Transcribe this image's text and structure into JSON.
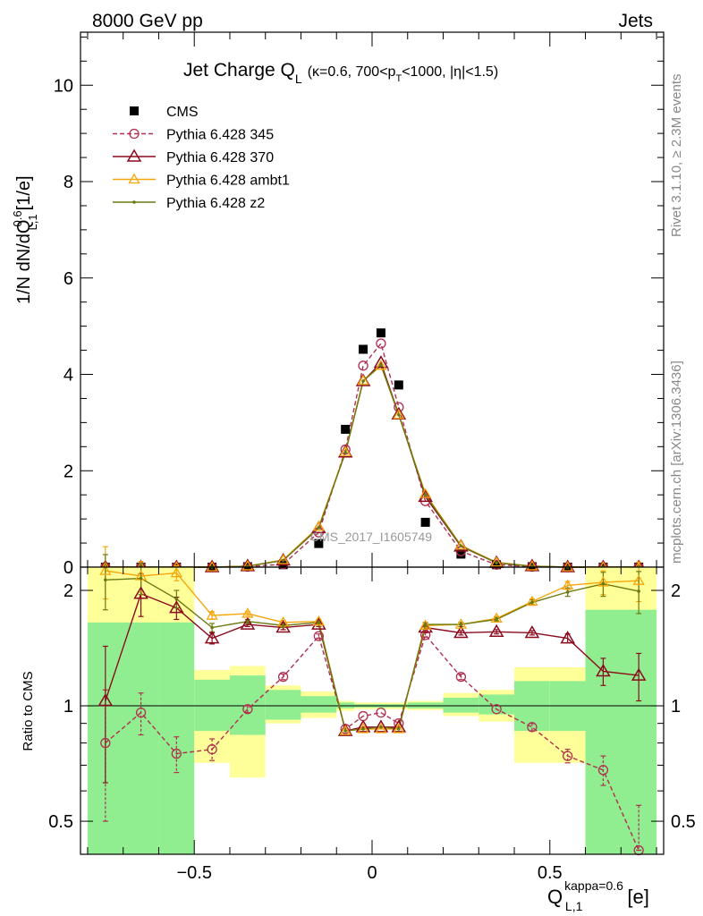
{
  "header": {
    "left": "8000 GeV pp",
    "right": "Jets"
  },
  "side_labels": {
    "rivet": "Rivet 3.1.10, ≥ 2.3M events",
    "mcplots": "mcplots.cern.ch [arXiv:1306.3436]"
  },
  "watermark": "CMS_2017_I1605749",
  "colors": {
    "cms": "#000000",
    "p345": "#b03050",
    "p370": "#8b0a1e",
    "ambt1": "#f5a50a",
    "z2": "#6b7a10",
    "band_green": "#90ee90",
    "band_yellow": "#ffff99"
  },
  "chart_data": [
    {
      "type": "line",
      "title": "Jet Charge Q",
      "title_sub": "L",
      "title_extra": "(κ=0.6, 700<p",
      "title_extra_sub": "T",
      "title_extra_end": "<1000, |η|<1.5)",
      "ylabel": "1/N dN/dQ",
      "ylabel_sup": "0.6",
      "ylabel_sub": "L,1",
      "ylabel_unit": "[1/e]",
      "xlim": [
        -0.82,
        0.82
      ],
      "ylim": [
        0,
        11.1
      ],
      "yticks": [
        0,
        2,
        4,
        6,
        8,
        10
      ],
      "ytick_labels": [
        "0",
        "2",
        "4",
        "6",
        "8",
        "10"
      ],
      "x": [
        -0.75,
        -0.65,
        -0.55,
        -0.45,
        -0.35,
        -0.25,
        -0.15,
        -0.075,
        -0.025,
        0.025,
        0.075,
        0.15,
        0.25,
        0.35,
        0.45,
        0.55,
        0.65,
        0.75
      ],
      "series": [
        {
          "name": "CMS",
          "key": "cms",
          "values": [
            0.0,
            0.0,
            0.0,
            0.0,
            0.01,
            0.05,
            0.49,
            2.86,
            4.52,
            4.86,
            3.78,
            0.93,
            0.27,
            0.05,
            0.01,
            0.0,
            0.0,
            0.0
          ]
        },
        {
          "name": "Pythia 6.428 345",
          "key": "p345",
          "values": [
            0.0,
            0.0,
            0.0,
            0.0,
            0.01,
            0.06,
            0.72,
            2.44,
            4.18,
            4.64,
            3.32,
            1.37,
            0.33,
            0.05,
            0.01,
            0.0,
            0.0,
            0.0
          ]
        },
        {
          "name": "Pythia 6.428 370",
          "key": "p370",
          "values": [
            0.0,
            0.0,
            0.0,
            0.0,
            0.02,
            0.14,
            0.81,
            2.38,
            3.86,
            4.24,
            3.17,
            1.46,
            0.43,
            0.09,
            0.02,
            0.0,
            0.0,
            0.0
          ]
        },
        {
          "name": "Pythia 6.428 ambt1",
          "key": "ambt1",
          "values": [
            0.0,
            0.0,
            0.0,
            0.0,
            0.02,
            0.15,
            0.84,
            2.39,
            3.87,
            4.18,
            3.16,
            1.52,
            0.45,
            0.1,
            0.02,
            0.0,
            0.0,
            0.0
          ]
        },
        {
          "name": "Pythia 6.428 z2",
          "key": "z2",
          "values": [
            0.0,
            0.0,
            0.0,
            0.0,
            0.02,
            0.14,
            0.82,
            2.38,
            3.86,
            4.19,
            3.16,
            1.5,
            0.44,
            0.09,
            0.02,
            0.0,
            0.0,
            0.0
          ]
        }
      ]
    },
    {
      "type": "line",
      "ylabel": "Ratio to CMS",
      "xlabel": "Q",
      "xlabel_sup": "kappa=0.6",
      "xlabel_sub": "L,1",
      "xlabel_unit": "[e]",
      "log_y": true,
      "xlim": [
        -0.82,
        0.82
      ],
      "ylim": [
        0.41,
        2.3
      ],
      "xticks": [
        -0.5,
        0,
        0.5
      ],
      "xtick_labels": [
        "−0.5",
        "0",
        "0.5"
      ],
      "yticks": [
        0.5,
        1,
        2
      ],
      "ytick_labels": [
        "0.5",
        "1",
        "2"
      ],
      "bands": {
        "x_edges": [
          -0.8,
          -0.6,
          -0.5,
          -0.4,
          -0.3,
          -0.2,
          -0.1,
          -0.05,
          0.0,
          0.05,
          0.1,
          0.2,
          0.3,
          0.4,
          0.5,
          0.6,
          0.8
        ],
        "green_lo": [
          0.4,
          0.4,
          0.86,
          0.84,
          0.92,
          0.96,
          0.985,
          0.99,
          0.99,
          0.99,
          0.985,
          0.96,
          0.95,
          0.86,
          0.86,
          0.4
        ],
        "green_hi": [
          1.65,
          1.65,
          1.17,
          1.2,
          1.1,
          1.06,
          1.02,
          1.01,
          1.01,
          1.01,
          1.02,
          1.05,
          1.07,
          1.16,
          1.16,
          1.78
        ],
        "yellow_lo": [
          0.4,
          0.4,
          0.71,
          0.65,
          0.9,
          0.93,
          0.97,
          0.98,
          0.98,
          0.98,
          0.975,
          0.94,
          0.91,
          0.71,
          0.71,
          0.4
        ],
        "yellow_hi": [
          2.3,
          2.3,
          1.24,
          1.27,
          1.13,
          1.09,
          1.03,
          1.02,
          1.02,
          1.02,
          1.03,
          1.08,
          1.1,
          1.26,
          1.26,
          2.3
        ]
      },
      "series": [
        {
          "name": "Pythia 6.428 345",
          "key": "p345",
          "values": [
            0.8,
            0.96,
            0.75,
            0.77,
            0.98,
            1.19,
            1.52,
            0.87,
            0.94,
            0.96,
            0.9,
            1.53,
            1.19,
            0.98,
            0.88,
            0.74,
            0.68,
            0.42
          ],
          "err": [
            0.3,
            0.12,
            0.08,
            0.05,
            0.02,
            0.02,
            0.02,
            0.01,
            0.01,
            0.01,
            0.01,
            0.02,
            0.02,
            0.01,
            0.02,
            0.03,
            0.06,
            0.13
          ]
        },
        {
          "name": "Pythia 6.428 370",
          "key": "p370",
          "values": [
            1.03,
            1.96,
            1.8,
            1.5,
            1.63,
            1.6,
            1.63,
            0.86,
            0.88,
            0.88,
            0.88,
            1.6,
            1.55,
            1.56,
            1.55,
            1.5,
            1.23,
            1.2
          ],
          "err": [
            0.4,
            0.25,
            0.12,
            0.05,
            0.02,
            0.02,
            0.02,
            0.01,
            0.01,
            0.01,
            0.01,
            0.02,
            0.02,
            0.02,
            0.02,
            0.04,
            0.1,
            0.17
          ]
        },
        {
          "name": "Pythia 6.428 ambt1",
          "key": "ambt1",
          "values": [
            2.25,
            2.18,
            2.22,
            1.72,
            1.74,
            1.65,
            1.66,
            0.86,
            0.87,
            0.87,
            0.87,
            1.62,
            1.63,
            1.69,
            1.87,
            2.06,
            2.1,
            2.12
          ],
          "err": [
            0.35,
            0.2,
            0.1,
            0.04,
            0.02,
            0.02,
            0.02,
            0.01,
            0.01,
            0.01,
            0.01,
            0.02,
            0.02,
            0.02,
            0.03,
            0.05,
            0.15,
            0.25
          ]
        },
        {
          "name": "Pythia 6.428 z2",
          "key": "z2",
          "values": [
            2.13,
            2.15,
            1.9,
            1.6,
            1.66,
            1.62,
            1.65,
            0.86,
            0.87,
            0.88,
            0.87,
            1.63,
            1.63,
            1.68,
            1.86,
            1.98,
            2.08,
            1.99
          ],
          "err": [
            0.35,
            0.2,
            0.1,
            0.04,
            0.02,
            0.02,
            0.02,
            0.01,
            0.01,
            0.01,
            0.01,
            0.02,
            0.02,
            0.02,
            0.03,
            0.05,
            0.15,
            0.25
          ]
        }
      ]
    }
  ]
}
